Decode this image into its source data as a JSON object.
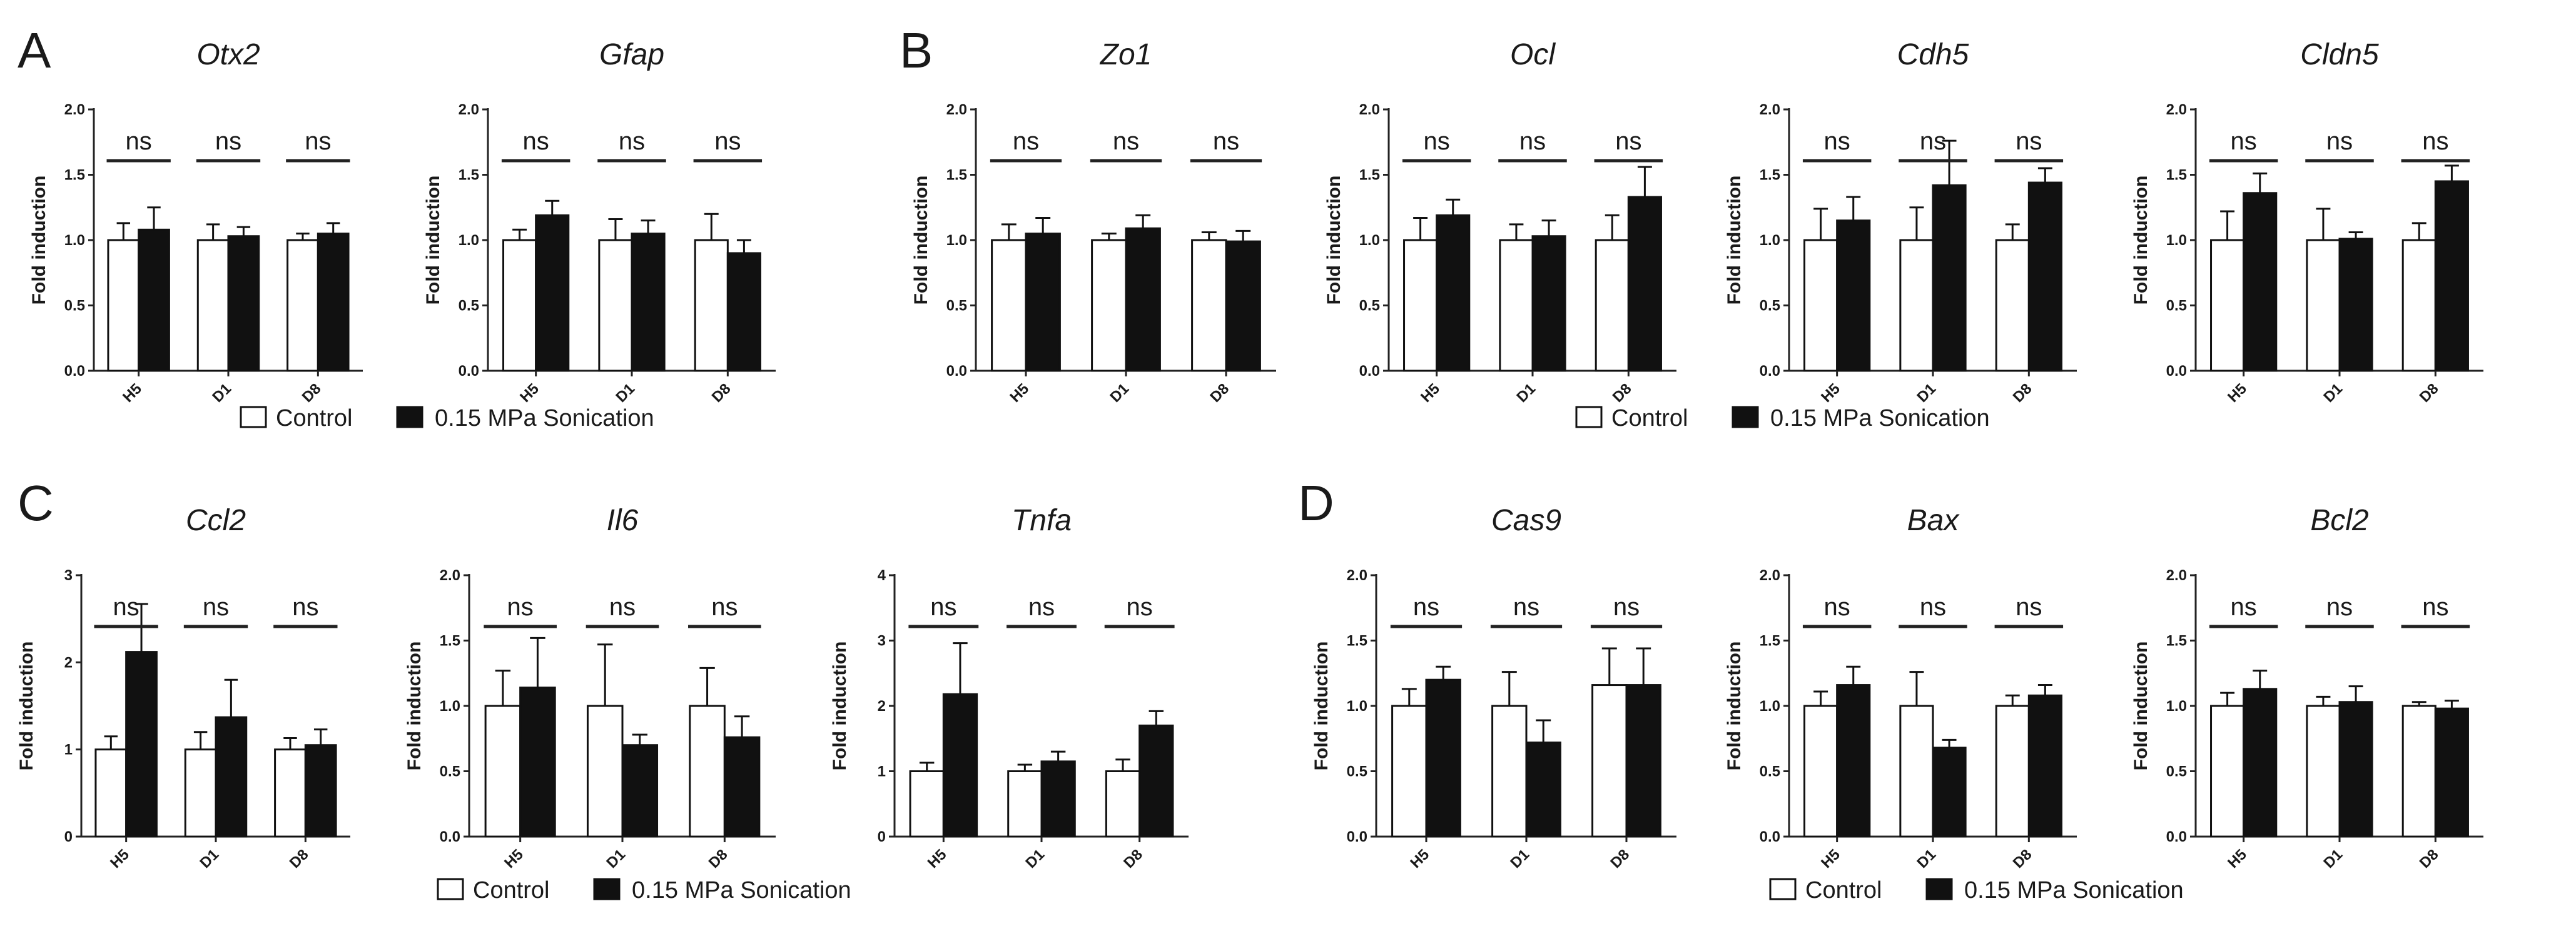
{
  "panels": [
    "A",
    "B",
    "C",
    "D"
  ],
  "legend": {
    "control_label": "Control",
    "treatment_label": "0.15 MPa Sonication",
    "control_color": "#ffffff",
    "treatment_color": "#111111"
  },
  "chart_data": [
    {
      "id": "otx2",
      "panel": "A",
      "type": "bar",
      "title": "Otx2",
      "ylabel": "Fold induction",
      "categories": [
        "H5",
        "D1",
        "D8"
      ],
      "ylim": [
        0,
        2
      ],
      "yticks": [
        "0.0",
        "0.5",
        "1.0",
        "1.5",
        "2.0"
      ],
      "significance": [
        "ns",
        "ns",
        "ns"
      ],
      "series": [
        {
          "name": "Control",
          "values": [
            1.0,
            1.0,
            1.0
          ],
          "errors": [
            0.13,
            0.12,
            0.05
          ]
        },
        {
          "name": "0.15 MPa Sonication",
          "values": [
            1.08,
            1.03,
            1.05
          ],
          "errors": [
            0.17,
            0.07,
            0.08
          ]
        }
      ]
    },
    {
      "id": "gfap",
      "panel": "A",
      "type": "bar",
      "title": "Gfap",
      "ylabel": "Fold induction",
      "categories": [
        "H5",
        "D1",
        "D8"
      ],
      "ylim": [
        0,
        2
      ],
      "yticks": [
        "0.0",
        "0.5",
        "1.0",
        "1.5",
        "2.0"
      ],
      "significance": [
        "ns",
        "ns",
        "ns"
      ],
      "series": [
        {
          "name": "Control",
          "values": [
            1.0,
            1.0,
            1.0
          ],
          "errors": [
            0.08,
            0.16,
            0.2
          ]
        },
        {
          "name": "0.15 MPa Sonication",
          "values": [
            1.19,
            1.05,
            0.9
          ],
          "errors": [
            0.11,
            0.1,
            0.1
          ]
        }
      ]
    },
    {
      "id": "zo1",
      "panel": "B",
      "type": "bar",
      "title": "Zo1",
      "ylabel": "Fold induction",
      "categories": [
        "H5",
        "D1",
        "D8"
      ],
      "ylim": [
        0,
        2
      ],
      "yticks": [
        "0.0",
        "0.5",
        "1.0",
        "1.5",
        "2.0"
      ],
      "significance": [
        "ns",
        "ns",
        "ns"
      ],
      "series": [
        {
          "name": "Control",
          "values": [
            1.0,
            1.0,
            1.0
          ],
          "errors": [
            0.12,
            0.05,
            0.06
          ]
        },
        {
          "name": "0.15 MPa Sonication",
          "values": [
            1.05,
            1.09,
            0.99
          ],
          "errors": [
            0.12,
            0.1,
            0.08
          ]
        }
      ]
    },
    {
      "id": "ocl",
      "panel": "B",
      "type": "bar",
      "title": "Ocl",
      "ylabel": "Fold induction",
      "categories": [
        "H5",
        "D1",
        "D8"
      ],
      "ylim": [
        0,
        2
      ],
      "yticks": [
        "0.0",
        "0.5",
        "1.0",
        "1.5",
        "2.0"
      ],
      "significance": [
        "ns",
        "ns",
        "ns"
      ],
      "series": [
        {
          "name": "Control",
          "values": [
            1.0,
            1.0,
            1.0
          ],
          "errors": [
            0.17,
            0.12,
            0.19
          ]
        },
        {
          "name": "0.15 MPa Sonication",
          "values": [
            1.19,
            1.03,
            1.33
          ],
          "errors": [
            0.12,
            0.12,
            0.23
          ]
        }
      ]
    },
    {
      "id": "cdh5",
      "panel": "B",
      "type": "bar",
      "title": "Cdh5",
      "ylabel": "Fold induction",
      "categories": [
        "H5",
        "D1",
        "D8"
      ],
      "ylim": [
        0,
        2
      ],
      "yticks": [
        "0.0",
        "0.5",
        "1.0",
        "1.5",
        "2.0"
      ],
      "significance": [
        "ns",
        "ns",
        "ns"
      ],
      "series": [
        {
          "name": "Control",
          "values": [
            1.0,
            1.0,
            1.0
          ],
          "errors": [
            0.24,
            0.25,
            0.12
          ]
        },
        {
          "name": "0.15 MPa Sonication",
          "values": [
            1.15,
            1.42,
            1.44
          ],
          "errors": [
            0.18,
            0.34,
            0.11
          ]
        }
      ]
    },
    {
      "id": "cldn5",
      "panel": "B",
      "type": "bar",
      "title": "Cldn5",
      "ylabel": "Fold induction",
      "categories": [
        "H5",
        "D1",
        "D8"
      ],
      "ylim": [
        0,
        2
      ],
      "yticks": [
        "0.0",
        "0.5",
        "1.0",
        "1.5",
        "2.0"
      ],
      "significance": [
        "ns",
        "ns",
        "ns"
      ],
      "series": [
        {
          "name": "Control",
          "values": [
            1.0,
            1.0,
            1.0
          ],
          "errors": [
            0.22,
            0.24,
            0.13
          ]
        },
        {
          "name": "0.15 MPa Sonication",
          "values": [
            1.36,
            1.01,
            1.45
          ],
          "errors": [
            0.15,
            0.05,
            0.12
          ]
        }
      ]
    },
    {
      "id": "ccl2",
      "panel": "C",
      "type": "bar",
      "title": "Ccl2",
      "ylabel": "Fold induction",
      "categories": [
        "H5",
        "D1",
        "D8"
      ],
      "ylim": [
        0,
        3
      ],
      "yticks": [
        "0",
        "1",
        "2",
        "3"
      ],
      "significance": [
        "ns",
        "ns",
        "ns"
      ],
      "series": [
        {
          "name": "Control",
          "values": [
            1.0,
            1.0,
            1.0
          ],
          "errors": [
            0.15,
            0.2,
            0.13
          ]
        },
        {
          "name": "0.15 MPa Sonication",
          "values": [
            2.12,
            1.37,
            1.05
          ],
          "errors": [
            0.55,
            0.43,
            0.18
          ]
        }
      ]
    },
    {
      "id": "il6",
      "panel": "C",
      "type": "bar",
      "title": "Il6",
      "ylabel": "Fold induction",
      "categories": [
        "H5",
        "D1",
        "D8"
      ],
      "ylim": [
        0,
        2
      ],
      "yticks": [
        "0.0",
        "0.5",
        "1.0",
        "1.5",
        "2.0"
      ],
      "significance": [
        "ns",
        "ns",
        "ns"
      ],
      "series": [
        {
          "name": "Control",
          "values": [
            1.0,
            1.0,
            1.0
          ],
          "errors": [
            0.27,
            0.47,
            0.29
          ]
        },
        {
          "name": "0.15 MPa Sonication",
          "values": [
            1.14,
            0.7,
            0.76
          ],
          "errors": [
            0.38,
            0.08,
            0.16
          ]
        }
      ]
    },
    {
      "id": "tnfa",
      "panel": "C",
      "type": "bar",
      "title": "Tnfa",
      "ylabel": "Fold induction",
      "categories": [
        "H5",
        "D1",
        "D8"
      ],
      "ylim": [
        0,
        4
      ],
      "yticks": [
        "0",
        "1",
        "2",
        "3",
        "4"
      ],
      "significance": [
        "ns",
        "ns",
        "ns"
      ],
      "series": [
        {
          "name": "Control",
          "values": [
            1.0,
            1.0,
            1.0
          ],
          "errors": [
            0.13,
            0.1,
            0.18
          ]
        },
        {
          "name": "0.15 MPa Sonication",
          "values": [
            2.18,
            1.15,
            1.7
          ],
          "errors": [
            0.78,
            0.15,
            0.22
          ]
        }
      ]
    },
    {
      "id": "cas9",
      "panel": "D",
      "type": "bar",
      "title": "Cas9",
      "ylabel": "Fold induction",
      "categories": [
        "H5",
        "D1",
        "D8"
      ],
      "ylim": [
        0,
        2
      ],
      "yticks": [
        "0.0",
        "0.5",
        "1.0",
        "1.5",
        "2.0"
      ],
      "significance": [
        "ns",
        "ns",
        "ns"
      ],
      "series": [
        {
          "name": "Control",
          "values": [
            1.0,
            1.0,
            1.16
          ],
          "errors": [
            0.13,
            0.26,
            0.28
          ]
        },
        {
          "name": "0.15 MPa Sonication",
          "values": [
            1.2,
            0.72,
            1.16
          ],
          "errors": [
            0.1,
            0.17,
            0.28
          ]
        }
      ]
    },
    {
      "id": "bax",
      "panel": "D",
      "type": "bar",
      "title": "Bax",
      "ylabel": "Fold induction",
      "categories": [
        "H5",
        "D1",
        "D8"
      ],
      "ylim": [
        0,
        2
      ],
      "yticks": [
        "0.0",
        "0.5",
        "1.0",
        "1.5",
        "2.0"
      ],
      "significance": [
        "ns",
        "ns",
        "ns"
      ],
      "series": [
        {
          "name": "Control",
          "values": [
            1.0,
            1.0,
            1.0
          ],
          "errors": [
            0.11,
            0.26,
            0.08
          ]
        },
        {
          "name": "0.15 MPa Sonication",
          "values": [
            1.16,
            0.68,
            1.08
          ],
          "errors": [
            0.14,
            0.06,
            0.08
          ]
        }
      ]
    },
    {
      "id": "bcl2",
      "panel": "D",
      "type": "bar",
      "title": "Bcl2",
      "ylabel": "Fold induction",
      "categories": [
        "H5",
        "D1",
        "D8"
      ],
      "ylim": [
        0,
        2
      ],
      "yticks": [
        "0.0",
        "0.5",
        "1.0",
        "1.5",
        "2.0"
      ],
      "significance": [
        "ns",
        "ns",
        "ns"
      ],
      "series": [
        {
          "name": "Control",
          "values": [
            1.0,
            1.0,
            1.0
          ],
          "errors": [
            0.1,
            0.07,
            0.03
          ]
        },
        {
          "name": "0.15 MPa Sonication",
          "values": [
            1.13,
            1.03,
            0.98
          ],
          "errors": [
            0.14,
            0.12,
            0.06
          ]
        }
      ]
    }
  ]
}
